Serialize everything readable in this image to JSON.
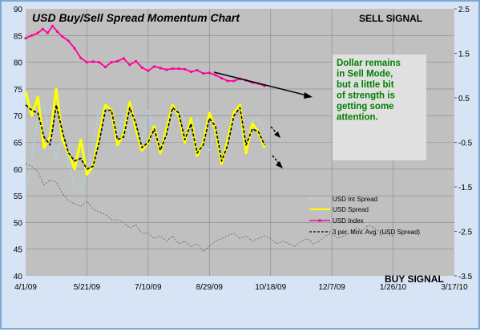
{
  "chart_data": {
    "type": "line",
    "title": "USD Buy/Sell Spread Momentum Chart",
    "signal_top": "SELL SIGNAL",
    "signal_bottom": "BUY SIGNAL",
    "annotation": "Dollar remains in Sell Mode, but a little bit of strength is getting some attention.",
    "x_ticks": [
      "4/1/09",
      "5/21/09",
      "7/10/09",
      "8/29/09",
      "10/18/09",
      "12/7/09",
      "1/26/10",
      "3/17/10"
    ],
    "x_range": [
      0,
      350
    ],
    "y_left": {
      "ticks": [
        40,
        45,
        50,
        55,
        60,
        65,
        70,
        75,
        80,
        85,
        90
      ],
      "range": [
        40,
        90
      ]
    },
    "y_right": {
      "ticks": [
        -3.5,
        -2.5,
        -1.5,
        -0.5,
        0.5,
        1.5,
        2.5
      ],
      "range": [
        -3.5,
        2.5
      ]
    },
    "grid": true,
    "legend_position": "bottom-right",
    "legend": [
      "USD Int Spread",
      "USD Spread",
      "USD Index",
      "3 per. Mov. Avg. (USD Spread)"
    ],
    "colors": {
      "int_spread": "#a9d8e0",
      "usd_spread": "#ffff00",
      "usd_index": "#ff0099",
      "mov_avg": "#000000",
      "lower_series": "#4a8a4a",
      "grid": "#888888",
      "plot_bg": "#c0c0c0",
      "annotation_bg": "#e0e0e0",
      "annotation_text": "#008000"
    },
    "series": [
      {
        "name": "USD Index",
        "axis": "left",
        "days": [
          0,
          5,
          10,
          14,
          18,
          22,
          26,
          30,
          35,
          40,
          45,
          50,
          55,
          60,
          65,
          70,
          75,
          80,
          85,
          90,
          95,
          100,
          105,
          110,
          115,
          120,
          125,
          130,
          135,
          140,
          145,
          150,
          155,
          160,
          165,
          170,
          175,
          180,
          185,
          190,
          195
        ],
        "values": [
          84.5,
          85.0,
          85.5,
          86.2,
          85.5,
          86.8,
          85.7,
          84.8,
          84.0,
          82.6,
          80.8,
          80.0,
          80.1,
          80.0,
          79.1,
          80.0,
          80.2,
          80.7,
          79.5,
          80.2,
          79.0,
          78.4,
          79.2,
          78.9,
          78.6,
          78.8,
          78.8,
          78.7,
          78.2,
          78.5,
          77.9,
          78.0,
          77.6,
          77.0,
          76.5,
          76.5,
          76.9,
          76.6,
          76.2,
          76.0,
          75.6
        ]
      },
      {
        "name": "USD Spread",
        "axis": "left",
        "days": [
          0,
          5,
          10,
          15,
          20,
          25,
          30,
          35,
          40,
          45,
          50,
          55,
          60,
          65,
          70,
          75,
          80,
          85,
          90,
          95,
          100,
          105,
          110,
          115,
          120,
          125,
          130,
          135,
          140,
          145,
          150,
          155,
          160,
          165,
          170,
          175,
          180,
          185,
          190,
          195
        ],
        "values": [
          74.5,
          70.0,
          73.5,
          64.0,
          66.0,
          75.0,
          65.5,
          63.0,
          60.0,
          65.5,
          59.0,
          60.5,
          66.5,
          72.0,
          71.0,
          64.5,
          66.5,
          72.5,
          67.5,
          63.5,
          65.0,
          68.0,
          63.0,
          67.5,
          72.0,
          70.0,
          65.0,
          69.5,
          62.5,
          65.0,
          70.5,
          67.5,
          61.0,
          65.5,
          70.5,
          72.0,
          63.0,
          68.5,
          67.0,
          64.0
        ]
      },
      {
        "name": "USD Int Spread",
        "axis": "left",
        "days": [
          0,
          5,
          10,
          15,
          20,
          25,
          30,
          35,
          40,
          45,
          50,
          55,
          60,
          65,
          70,
          75,
          80,
          85,
          90,
          95,
          100,
          105,
          110,
          115,
          120,
          125,
          130,
          135,
          140,
          145,
          150,
          155,
          160,
          165,
          170,
          175,
          180,
          185,
          190,
          195
        ],
        "values": [
          55.0,
          62.0,
          70.0,
          72.0,
          66.0,
          62.0,
          66.5,
          61.0,
          57.0,
          56.0,
          59.0,
          64.0,
          71.0,
          71.5,
          70.5,
          66.5,
          70.5,
          66.0,
          65.5,
          65.0,
          71.0,
          66.5,
          64.5,
          65.5,
          69.0,
          71.0,
          69.0,
          65.5,
          69.5,
          64.0,
          63.5,
          67.5,
          63.5,
          64.0,
          68.5,
          67.5,
          64.0,
          69.0,
          69.5,
          67.0
        ]
      },
      {
        "name": "3 per. Mov. Avg. (USD Spread)",
        "axis": "left",
        "days": [
          0,
          5,
          10,
          15,
          20,
          25,
          30,
          35,
          40,
          45,
          50,
          55,
          60,
          65,
          70,
          75,
          80,
          85,
          90,
          95,
          100,
          105,
          110,
          115,
          120,
          125,
          130,
          135,
          140,
          145,
          150,
          155,
          160,
          165,
          170,
          175,
          180,
          185,
          190,
          195
        ],
        "values": [
          72.0,
          71.0,
          70.5,
          66.0,
          64.5,
          72.0,
          67.0,
          63.0,
          61.5,
          62.0,
          60.0,
          60.5,
          65.0,
          71.0,
          71.0,
          65.5,
          66.0,
          71.5,
          68.5,
          64.0,
          65.0,
          67.5,
          63.5,
          66.5,
          71.5,
          70.5,
          65.5,
          68.5,
          63.0,
          64.5,
          69.5,
          68.0,
          61.5,
          64.5,
          70.0,
          71.5,
          64.5,
          67.5,
          67.0,
          64.5
        ]
      },
      {
        "name": "",
        "axis": "left",
        "days": [
          0,
          5,
          10,
          15,
          20,
          25,
          30,
          35,
          40,
          45,
          50,
          55,
          60,
          65,
          70,
          75,
          80,
          85,
          90,
          95,
          100,
          105,
          110,
          115,
          120,
          125,
          130,
          135,
          140,
          145,
          150,
          155,
          160,
          165,
          170,
          175,
          180,
          185,
          190,
          195,
          200,
          205,
          210,
          215,
          220,
          225,
          230,
          235,
          240,
          245,
          250,
          255,
          260,
          265,
          270,
          275,
          280,
          285,
          290,
          295,
          300
        ],
        "values": [
          61.0,
          60.5,
          59.5,
          57.0,
          58.0,
          57.5,
          55.5,
          54.0,
          53.5,
          53.0,
          54.0,
          52.5,
          52.0,
          51.5,
          50.5,
          50.5,
          50.0,
          49.0,
          49.5,
          48.0,
          48.0,
          47.0,
          47.5,
          46.5,
          47.5,
          46.0,
          46.5,
          45.5,
          46.0,
          44.5,
          45.5,
          46.5,
          47.0,
          47.5,
          48.0,
          47.0,
          47.5,
          46.5,
          47.0,
          47.5,
          47.0,
          46.0,
          46.5,
          46.0,
          45.5,
          46.5,
          47.0,
          46.0,
          46.5,
          47.5,
          48.0,
          47.0,
          47.5,
          48.0,
          49.0,
          48.5,
          49.5,
          49.0,
          48.0,
          48.0,
          47.5
        ]
      }
    ]
  }
}
